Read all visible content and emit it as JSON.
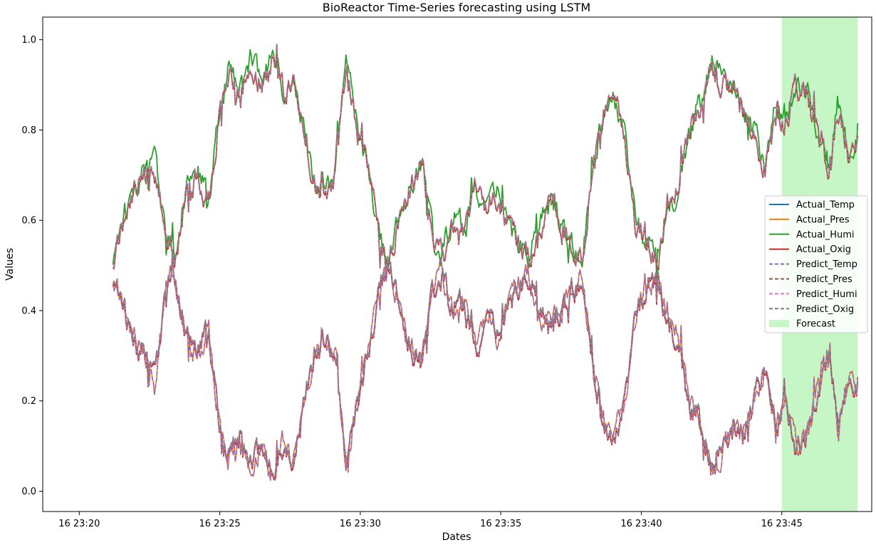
{
  "chart_data": {
    "type": "line",
    "title": "BioReactor  Time-Series forecasting using LSTM",
    "xlabel": "Dates",
    "ylabel": "Values",
    "x_ticks": [
      "16 23:20",
      "16 23:25",
      "16 23:30",
      "16 23:35",
      "16 23:40",
      "16 23:45"
    ],
    "x_tick_minutes": [
      0,
      5,
      10,
      15,
      20,
      25
    ],
    "x_range_minutes": [
      -1.3,
      28.2
    ],
    "data_x_start_minutes": 1.2,
    "data_x_end_minutes": 27.7,
    "y_ticks": [
      "0.0",
      "0.2",
      "0.4",
      "0.6",
      "0.8",
      "1.0"
    ],
    "y_tick_values": [
      0.0,
      0.2,
      0.4,
      0.6,
      0.8,
      1.0
    ],
    "ylim": [
      -0.045,
      1.05
    ],
    "forecast_range_minutes": [
      25.0,
      27.7
    ],
    "series_upper": {
      "note": "approximate envelope of upper family (Humi/Oxig group)",
      "x_minutes": [
        1.2,
        1.5,
        1.9,
        2.3,
        2.7,
        3.1,
        3.4,
        3.8,
        4.2,
        4.6,
        5.0,
        5.3,
        5.7,
        6.1,
        6.5,
        6.9,
        7.3,
        7.6,
        8.0,
        8.4,
        8.8,
        9.1,
        9.5,
        9.9,
        10.3,
        10.7,
        11.0,
        11.4,
        11.8,
        12.2,
        12.6,
        12.9,
        13.3,
        13.7,
        14.1,
        14.5,
        14.9,
        15.2,
        15.6,
        16.0,
        16.4,
        16.8,
        17.1,
        17.5,
        17.9,
        18.3,
        18.7,
        19.0,
        19.4,
        19.8,
        20.2,
        20.6,
        20.9,
        21.3,
        21.7,
        22.1,
        22.5,
        22.8,
        23.2,
        23.6,
        24.0,
        24.4,
        24.8,
        25.1,
        25.5,
        25.9,
        26.3,
        26.7,
        27.0,
        27.4,
        27.7
      ],
      "values": [
        0.52,
        0.58,
        0.66,
        0.7,
        0.74,
        0.55,
        0.52,
        0.66,
        0.7,
        0.64,
        0.85,
        0.93,
        0.88,
        0.95,
        0.9,
        0.97,
        0.88,
        0.93,
        0.8,
        0.68,
        0.67,
        0.7,
        0.95,
        0.8,
        0.7,
        0.55,
        0.5,
        0.6,
        0.68,
        0.72,
        0.55,
        0.52,
        0.6,
        0.58,
        0.68,
        0.62,
        0.66,
        0.6,
        0.55,
        0.52,
        0.6,
        0.64,
        0.6,
        0.55,
        0.52,
        0.73,
        0.85,
        0.88,
        0.8,
        0.6,
        0.55,
        0.52,
        0.62,
        0.66,
        0.8,
        0.85,
        0.95,
        0.92,
        0.88,
        0.86,
        0.8,
        0.72,
        0.86,
        0.8,
        0.9,
        0.88,
        0.78,
        0.7,
        0.86,
        0.74,
        0.78
      ]
    },
    "series_lower": {
      "note": "approximate envelope of lower family (Temp/Pres group)",
      "x_minutes": [
        1.2,
        1.5,
        1.9,
        2.3,
        2.7,
        3.1,
        3.4,
        3.8,
        4.2,
        4.6,
        5.0,
        5.3,
        5.7,
        6.1,
        6.5,
        6.9,
        7.3,
        7.6,
        8.0,
        8.4,
        8.8,
        9.1,
        9.5,
        9.9,
        10.3,
        10.7,
        11.0,
        11.4,
        11.8,
        12.2,
        12.6,
        12.9,
        13.3,
        13.7,
        14.1,
        14.5,
        14.9,
        15.2,
        15.6,
        16.0,
        16.4,
        16.8,
        17.1,
        17.5,
        17.9,
        18.3,
        18.7,
        19.0,
        19.4,
        19.8,
        20.2,
        20.6,
        20.9,
        21.3,
        21.7,
        22.1,
        22.5,
        22.8,
        23.2,
        23.6,
        24.0,
        24.4,
        24.8,
        25.1,
        25.5,
        25.9,
        26.3,
        26.7,
        27.0,
        27.4,
        27.7
      ],
      "values": [
        0.48,
        0.42,
        0.34,
        0.3,
        0.26,
        0.45,
        0.48,
        0.34,
        0.3,
        0.36,
        0.15,
        0.07,
        0.12,
        0.05,
        0.1,
        0.03,
        0.12,
        0.07,
        0.2,
        0.32,
        0.33,
        0.3,
        0.05,
        0.2,
        0.3,
        0.45,
        0.5,
        0.4,
        0.32,
        0.28,
        0.45,
        0.48,
        0.4,
        0.42,
        0.32,
        0.38,
        0.34,
        0.4,
        0.45,
        0.48,
        0.4,
        0.36,
        0.4,
        0.45,
        0.48,
        0.27,
        0.15,
        0.12,
        0.2,
        0.4,
        0.45,
        0.48,
        0.38,
        0.34,
        0.2,
        0.15,
        0.05,
        0.08,
        0.12,
        0.14,
        0.2,
        0.28,
        0.14,
        0.2,
        0.1,
        0.12,
        0.22,
        0.3,
        0.14,
        0.26,
        0.22
      ]
    },
    "legend": {
      "position": "center-right",
      "entries": [
        {
          "label": "Actual_Temp",
          "color": "#1f77b4",
          "style": "solid"
        },
        {
          "label": "Actual_Pres",
          "color": "#ff7f0e",
          "style": "solid"
        },
        {
          "label": "Actual_Humi",
          "color": "#2ca02c",
          "style": "solid"
        },
        {
          "label": "Actual_Oxig",
          "color": "#d62728",
          "style": "solid"
        },
        {
          "label": "Predict_Temp",
          "color": "#9467bd",
          "style": "dashed"
        },
        {
          "label": "Predict_Pres",
          "color": "#8c564b",
          "style": "dashed"
        },
        {
          "label": "Predict_Humi",
          "color": "#e377c2",
          "style": "dashed"
        },
        {
          "label": "Predict_Oxig",
          "color": "#7f7f7f",
          "style": "dashed"
        },
        {
          "label": "Forecast",
          "color": "#c6f5c6",
          "style": "patch"
        }
      ]
    }
  }
}
